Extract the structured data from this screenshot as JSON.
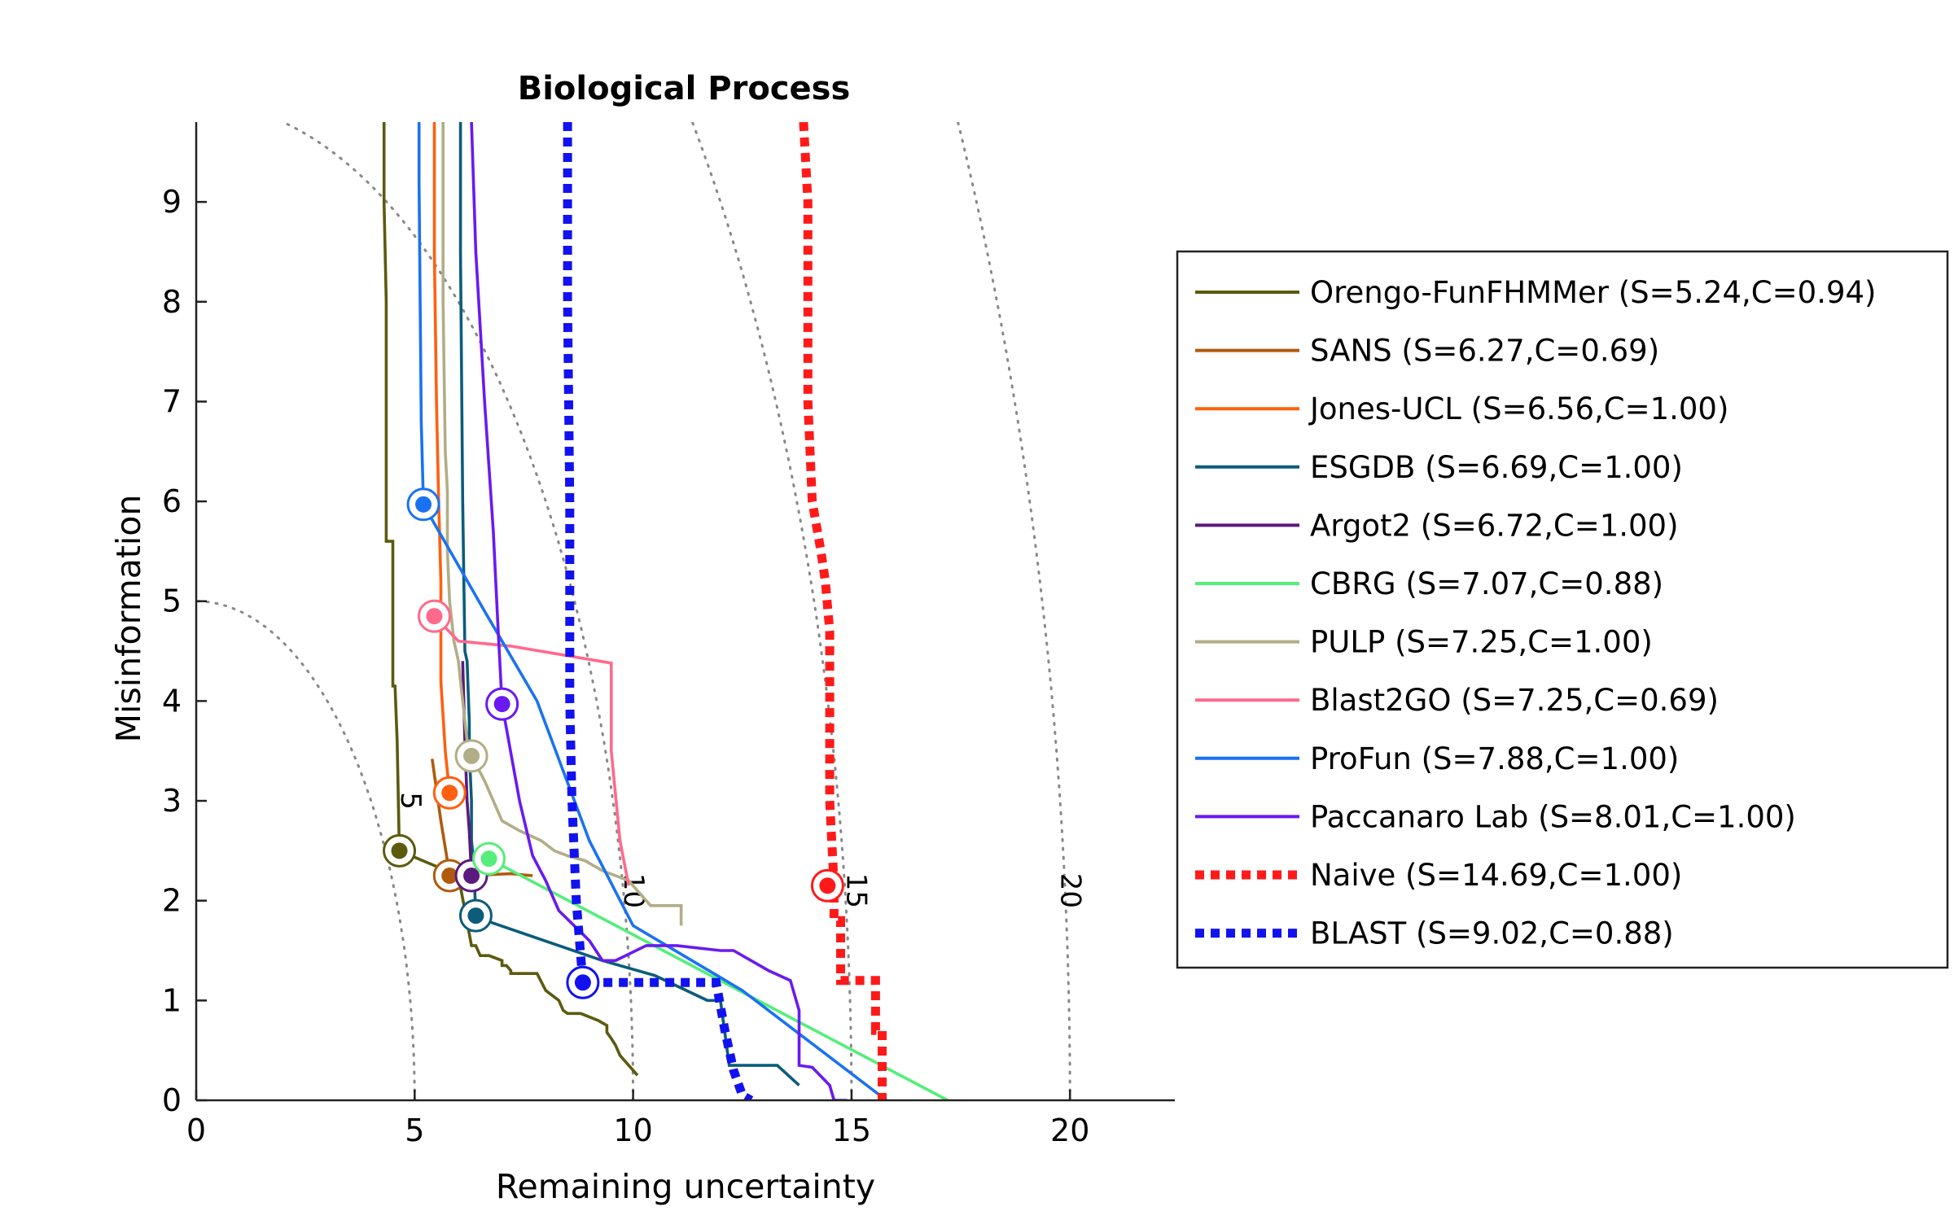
{
  "chart_data": {
    "type": "line",
    "title": "Biological Process",
    "xlabel": "Remaining uncertainty",
    "ylabel": "Misinformation",
    "xlim": [
      0,
      22.4
    ],
    "ylim": [
      0,
      9.8
    ],
    "xticks": [
      0,
      5,
      10,
      15,
      20
    ],
    "yticks": [
      0,
      1,
      2,
      3,
      4,
      5,
      6,
      7,
      8,
      9
    ],
    "grid": false,
    "legend_position": "right",
    "contours": [
      {
        "label": "5",
        "radius": 5,
        "label_at": [
          4.7,
          3.0
        ]
      },
      {
        "label": "10",
        "radius": 10,
        "label_at": [
          9.8,
          2.1
        ]
      },
      {
        "label": "15",
        "radius": 15,
        "label_at": [
          14.9,
          2.1
        ]
      },
      {
        "label": "20",
        "radius": 20,
        "label_at": [
          19.8,
          2.1
        ]
      }
    ],
    "series": [
      {
        "name": "Orengo-FunFHMMer (S=5.24,C=0.94)",
        "color": "#5c5a0e",
        "dashed": false,
        "point": [
          4.65,
          2.5
        ],
        "x": [
          4.3,
          4.3,
          4.35,
          4.35,
          4.5,
          4.5,
          4.55,
          4.6,
          4.65,
          6.0,
          6.3,
          6.4,
          6.5,
          6.7,
          7.0,
          7.0,
          7.1,
          7.2,
          7.2,
          7.3,
          7.3,
          7.8,
          8.0,
          8.3,
          8.4,
          8.5,
          8.8,
          9.2,
          9.4,
          9.4,
          9.5,
          9.6,
          9.7,
          9.9,
          10.1
        ],
        "y": [
          9.8,
          9.0,
          8.0,
          5.6,
          5.6,
          4.15,
          4.15,
          3.6,
          2.5,
          2.25,
          1.55,
          1.55,
          1.45,
          1.45,
          1.4,
          1.35,
          1.35,
          1.3,
          1.27,
          1.27,
          1.27,
          1.27,
          1.1,
          1.0,
          0.9,
          0.87,
          0.87,
          0.8,
          0.75,
          0.68,
          0.62,
          0.55,
          0.45,
          0.35,
          0.25
        ]
      },
      {
        "name": "SANS (S=6.27,C=0.69)",
        "color": "#b05a0c",
        "dashed": false,
        "point": [
          5.8,
          2.25
        ],
        "x": [
          5.4,
          5.6,
          5.75,
          5.8,
          6.2,
          7.2,
          7.7
        ],
        "y": [
          3.42,
          2.8,
          2.4,
          2.25,
          2.25,
          2.27,
          2.25
        ]
      },
      {
        "name": "Jones-UCL (S=6.56,C=1.00)",
        "color": "#ff6010",
        "dashed": false,
        "point": [
          5.8,
          3.08
        ],
        "x": [
          5.45,
          5.45,
          5.5,
          5.55,
          5.6,
          5.6,
          5.7,
          5.8
        ],
        "y": [
          9.8,
          8.5,
          7.0,
          6.0,
          5.2,
          4.2,
          3.5,
          3.08
        ]
      },
      {
        "name": "ESGDB (S=6.69,C=1.00)",
        "color": "#0c5c7a",
        "dashed": false,
        "point": [
          6.4,
          1.85
        ],
        "x": [
          6.05,
          6.05,
          6.1,
          6.15,
          6.2,
          6.25,
          6.25,
          6.3,
          6.3,
          6.35,
          6.4,
          6.5,
          9.3,
          10.5,
          11.7,
          12.0,
          12.2,
          12.4,
          13.3,
          13.8
        ],
        "y": [
          9.8,
          8.5,
          6.0,
          4.5,
          4.4,
          3.8,
          3.5,
          3.0,
          2.6,
          2.4,
          1.85,
          1.82,
          1.4,
          1.25,
          1.0,
          1.0,
          0.35,
          0.35,
          0.35,
          0.15
        ]
      },
      {
        "name": "Argot2 (S=6.72,C=1.00)",
        "color": "#5a1a7e",
        "dashed": false,
        "point": [
          6.3,
          2.25
        ],
        "x": [
          6.1,
          6.15,
          6.2,
          6.25,
          6.3
        ],
        "y": [
          4.4,
          3.6,
          3.0,
          2.7,
          2.25
        ]
      },
      {
        "name": "CBRG (S=7.07,C=0.88)",
        "color": "#55ee7a",
        "dashed": false,
        "point": [
          6.7,
          2.42
        ],
        "x": [
          6.7,
          17.2
        ],
        "y": [
          2.42,
          0.0
        ]
      },
      {
        "name": "PULP (S=7.25,C=1.00)",
        "color": "#b1ad86",
        "dashed": false,
        "point": [
          6.3,
          3.45
        ],
        "x": [
          5.65,
          5.65,
          5.7,
          5.75,
          5.75,
          5.8,
          5.9,
          6.0,
          6.1,
          6.15,
          6.2,
          6.3,
          6.6,
          6.8,
          7.0,
          7.4,
          7.9,
          8.2,
          8.5,
          8.9,
          9.1,
          9.3,
          9.6,
          9.9,
          10.2,
          10.4,
          10.6,
          11.1,
          11.1
        ],
        "y": [
          9.8,
          8.0,
          6.5,
          6.1,
          5.5,
          5.0,
          4.6,
          4.4,
          4.0,
          3.8,
          3.6,
          3.45,
          3.2,
          3.0,
          2.8,
          2.7,
          2.6,
          2.5,
          2.45,
          2.4,
          2.35,
          2.3,
          2.25,
          2.2,
          2.05,
          1.95,
          1.95,
          1.95,
          1.75
        ]
      },
      {
        "name": "Blast2GO (S=7.25,C=0.69)",
        "color": "#ff6a8c",
        "dashed": false,
        "point": [
          5.45,
          4.85
        ],
        "x": [
          5.45,
          6.0,
          7.2,
          9.5,
          9.5,
          9.7,
          9.9
        ],
        "y": [
          4.85,
          4.6,
          4.55,
          4.38,
          3.5,
          2.6,
          2.15
        ]
      },
      {
        "name": "ProFun (S=7.88,C=1.00)",
        "color": "#1a72f2",
        "dashed": false,
        "point": [
          5.2,
          5.97
        ],
        "x": [
          5.1,
          5.1,
          5.15,
          5.2,
          5.2,
          6.6,
          7.8,
          9.0,
          10.0,
          12.5,
          15.8
        ],
        "y": [
          9.8,
          9.2,
          6.8,
          6.0,
          5.97,
          4.9,
          4.0,
          2.6,
          1.75,
          1.1,
          0.0
        ]
      },
      {
        "name": "Paccanaro Lab (S=8.01,C=1.00)",
        "color": "#6a1af0",
        "dashed": false,
        "point": [
          7.0,
          3.97
        ],
        "x": [
          6.3,
          6.4,
          6.6,
          6.8,
          6.9,
          7.0,
          7.4,
          7.7,
          8.0,
          8.3,
          9.0,
          9.3,
          9.6,
          10.3,
          11.0,
          12.0,
          12.3,
          12.7,
          13.1,
          13.6,
          13.8,
          13.8,
          14.1,
          14.5,
          14.6,
          14.9
        ],
        "y": [
          9.8,
          8.5,
          7.0,
          5.7,
          4.8,
          3.97,
          3.0,
          2.45,
          2.2,
          1.9,
          1.6,
          1.4,
          1.4,
          1.55,
          1.55,
          1.5,
          1.5,
          1.4,
          1.3,
          1.2,
          0.9,
          0.35,
          0.33,
          0.15,
          0.0,
          0.0
        ]
      },
      {
        "name": "Naive (S=14.69,C=1.00)",
        "color": "#ff1a1a",
        "dashed": true,
        "point": [
          14.45,
          2.15
        ],
        "x": [
          13.9,
          14.0,
          14.0,
          14.1,
          14.3,
          14.4,
          14.5,
          14.5,
          14.6,
          14.6,
          14.75,
          14.75,
          15.0,
          15.0,
          15.55,
          15.55,
          15.7,
          15.7
        ],
        "y": [
          9.8,
          9.0,
          7.0,
          6.0,
          5.5,
          5.2,
          4.7,
          3.0,
          2.15,
          1.8,
          1.8,
          1.2,
          1.2,
          1.2,
          1.2,
          0.7,
          0.7,
          0.0
        ]
      },
      {
        "name": "BLAST (S=9.02,C=0.88)",
        "color": "#1212f0",
        "dashed": true,
        "point": [
          8.85,
          1.18
        ],
        "x": [
          8.5,
          8.5,
          8.55,
          8.55,
          8.6,
          8.7,
          8.85,
          11.8,
          11.9,
          12.1,
          12.3,
          12.5,
          12.7
        ],
        "y": [
          9.8,
          8.0,
          6.0,
          4.0,
          3.0,
          2.0,
          1.18,
          1.18,
          1.18,
          0.7,
          0.3,
          0.05,
          0.0
        ]
      }
    ]
  }
}
